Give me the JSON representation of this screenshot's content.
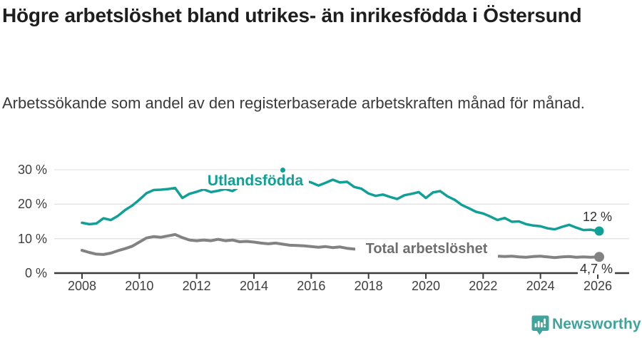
{
  "title": "Högre arbetslöshet bland utrikes- än inrikesfödda i Östersund",
  "subtitle": "Arbetssökande som andel av den registerbaserade arbetskraften månad för månad.",
  "footer": {
    "brand": "Newsworthy",
    "logo_icon": "newsworthy-pin-barchart-icon"
  },
  "colors": {
    "accent_teal": "#11a097",
    "series_gray": "#828282",
    "series_gray_label": "#6e6e6e",
    "axis": "#3c3c3c",
    "grid": "#e3e3e3",
    "value_label": "#2e2e2e",
    "logo_teal": "#3fa49b",
    "background": "#ffffff"
  },
  "chart_data": {
    "type": "line",
    "title": "Högre arbetslöshet bland utrikes- än inrikesfödda i Östersund",
    "subtitle": "Arbetssökande som andel av den registerbaserade arbetskraften månad för månad.",
    "unit": "%",
    "grid": "horizontal",
    "legend_position": "inline-labels",
    "xlim": [
      2007.1,
      2027.1
    ],
    "ylim": [
      0,
      30
    ],
    "x_ticks": [
      2008,
      2010,
      2012,
      2014,
      2016,
      2018,
      2020,
      2022,
      2024,
      2026
    ],
    "x_tick_labels": [
      "2008",
      "2010",
      "2012",
      "2014",
      "2016",
      "2018",
      "2020",
      "2022",
      "2024",
      "2026"
    ],
    "y_tick_values": [
      0,
      10,
      20,
      30
    ],
    "y_tick_labels": [
      "0 %",
      "10 %",
      "20 %",
      "30 %"
    ],
    "x": [
      2008,
      2008.25,
      2008.5,
      2008.75,
      2009,
      2009.25,
      2009.5,
      2009.75,
      2010,
      2010.25,
      2010.5,
      2010.75,
      2011,
      2011.25,
      2011.5,
      2011.75,
      2012,
      2012.25,
      2012.5,
      2012.75,
      2013,
      2013.25,
      2013.5,
      2013.75,
      2014,
      2014.25,
      2014.5,
      2014.75,
      2015,
      2015.25,
      2015.5,
      2015.75,
      2016,
      2016.25,
      2016.5,
      2016.75,
      2017,
      2017.25,
      2017.5,
      2017.75,
      2018,
      2018.25,
      2018.5,
      2018.75,
      2019,
      2019.25,
      2019.5,
      2019.75,
      2020,
      2020.25,
      2020.5,
      2020.75,
      2021,
      2021.25,
      2021.5,
      2021.75,
      2022,
      2022.25,
      2022.5,
      2022.75,
      2023,
      2023.25,
      2023.5,
      2023.75,
      2024,
      2024.25,
      2024.5,
      2024.75,
      2025,
      2025.25,
      2025.5,
      2025.75,
      2026
    ],
    "series": [
      {
        "name": "Utlandsfödda",
        "color": "#11a097",
        "end_label": "12 %",
        "end_value": 12,
        "line_width": 3.5,
        "values": [
          14.6,
          14.2,
          14.4,
          15.9,
          15.4,
          16.6,
          18.3,
          19.6,
          21.3,
          23.2,
          24.1,
          24.2,
          24.4,
          24.7,
          21.8,
          23.0,
          23.6,
          24.3,
          23.5,
          23.9,
          24.4,
          23.8,
          25.1,
          25.6,
          25.9,
          26.1,
          26.3,
          26.4,
          26.5,
          26.6,
          26.8,
          26.9,
          26.3,
          25.4,
          26.2,
          27.1,
          26.3,
          26.5,
          25.0,
          24.5,
          23.1,
          22.4,
          22.8,
          22.1,
          21.5,
          22.6,
          23.0,
          23.5,
          21.8,
          23.4,
          23.8,
          22.3,
          21.3,
          19.8,
          18.8,
          17.8,
          17.3,
          16.4,
          15.4,
          16.0,
          14.9,
          15.0,
          14.2,
          13.8,
          13.6,
          13.0,
          12.7,
          13.4,
          14.0,
          13.2,
          12.5,
          12.6,
          12.2
        ]
      },
      {
        "name": "Total arbetslöshet",
        "color": "#828282",
        "end_label": "4,7 %",
        "end_value": 4.7,
        "line_width": 4,
        "values": [
          6.6,
          6.0,
          5.5,
          5.4,
          5.8,
          6.5,
          7.1,
          7.8,
          9.0,
          10.2,
          10.6,
          10.4,
          10.8,
          11.2,
          10.3,
          9.6,
          9.4,
          9.6,
          9.4,
          9.8,
          9.4,
          9.6,
          9.1,
          9.2,
          9.0,
          8.7,
          8.5,
          8.7,
          8.4,
          8.1,
          8.0,
          7.9,
          7.7,
          7.5,
          7.7,
          7.4,
          7.6,
          7.2,
          7.0,
          6.7,
          6.4,
          6.2,
          6.1,
          6.0,
          5.9,
          5.8,
          5.9,
          6.0,
          6.1,
          7.3,
          7.9,
          7.7,
          7.4,
          6.9,
          6.3,
          5.8,
          5.4,
          5.1,
          4.9,
          4.8,
          4.9,
          4.7,
          4.6,
          4.8,
          4.9,
          4.7,
          4.5,
          4.7,
          4.8,
          4.6,
          4.7,
          4.6,
          4.7
        ]
      }
    ]
  }
}
